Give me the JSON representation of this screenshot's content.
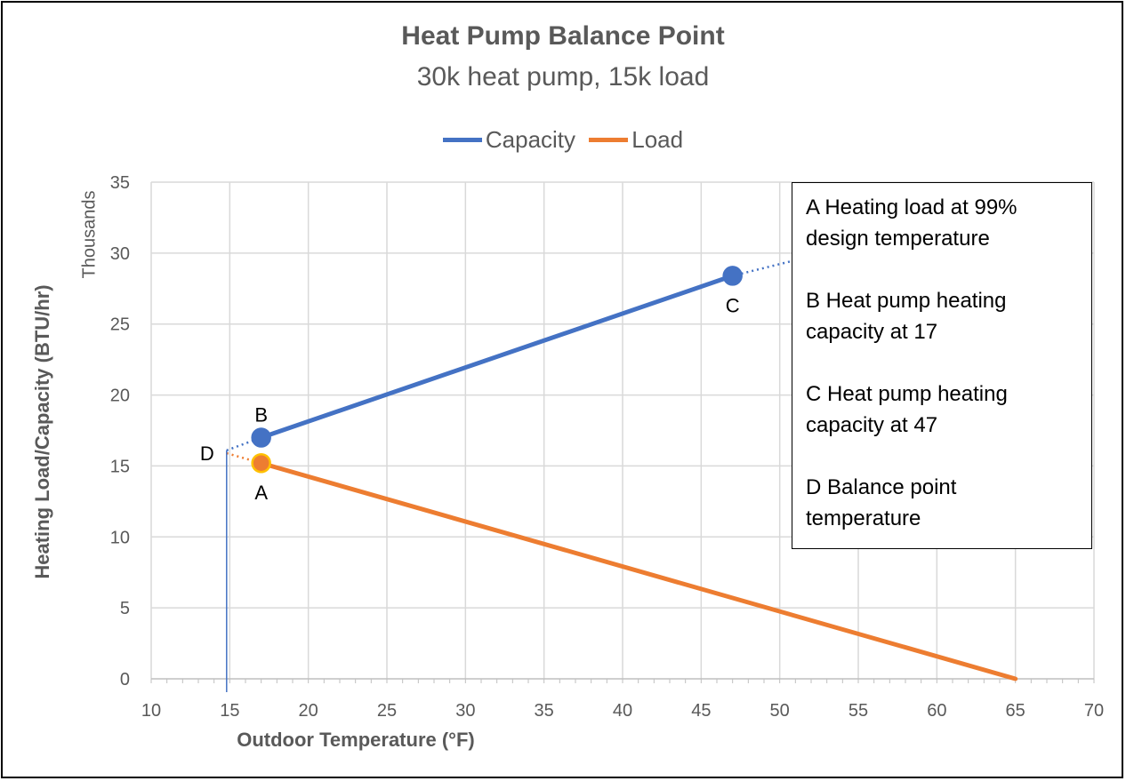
{
  "chart_data": {
    "type": "line",
    "title": "Heat Pump Balance Point",
    "subtitle": "30k heat pump, 15k load",
    "xlabel": "Outdoor Temperature (°F)",
    "ylabel": "Heating Load/Capacity (BTU/hr)",
    "y_units_label": "Thousands",
    "xlim": [
      10,
      70
    ],
    "ylim": [
      0,
      35
    ],
    "x_ticks": [
      "10",
      "15",
      "20",
      "25",
      "30",
      "35",
      "40",
      "45",
      "50",
      "55",
      "60",
      "65",
      "70"
    ],
    "y_ticks": [
      "0",
      "5",
      "10",
      "15",
      "20",
      "25",
      "30",
      "35"
    ],
    "grid": true,
    "legend_position": "top",
    "series": [
      {
        "name": "Capacity",
        "color": "#4472C4",
        "points": [
          [
            17,
            17.0
          ],
          [
            47,
            28.4
          ]
        ],
        "dotted_extension": [
          [
            14.8,
            16.1
          ],
          [
            17,
            17.0
          ],
          [
            47,
            28.4
          ],
          [
            51,
            29.5
          ]
        ]
      },
      {
        "name": "Load",
        "color": "#ED7D31",
        "points": [
          [
            17,
            15.2
          ],
          [
            65,
            0
          ]
        ],
        "dotted_extension": [
          [
            14.8,
            15.9
          ],
          [
            17,
            15.2
          ]
        ]
      }
    ],
    "markers": [
      {
        "label": "A",
        "x": 17,
        "y": 15.2,
        "fill": "#ED7D31",
        "stroke": "#FFC000",
        "label_position": "below"
      },
      {
        "label": "B",
        "x": 17,
        "y": 17.0,
        "fill": "#4472C4",
        "stroke": "#4472C4",
        "label_position": "above"
      },
      {
        "label": "C",
        "x": 47,
        "y": 28.4,
        "fill": "#4472C4",
        "stroke": "#4472C4",
        "label_position": "below"
      },
      {
        "label": "D",
        "x": 14.8,
        "y": 15.9,
        "label_position": "left"
      }
    ],
    "balance_line": {
      "x": 14.8,
      "y": 16.1,
      "color": "#4472C4"
    },
    "annotations": [
      {
        "line1": "A  Heating load at 99%",
        "line2": "design temperature"
      },
      {
        "line1": "B  Heat pump heating",
        "line2": "capacity at 17"
      },
      {
        "line1": "C  Heat pump heating",
        "line2": "capacity at 47"
      },
      {
        "line1": "D  Balance point",
        "line2": "temperature"
      }
    ]
  }
}
